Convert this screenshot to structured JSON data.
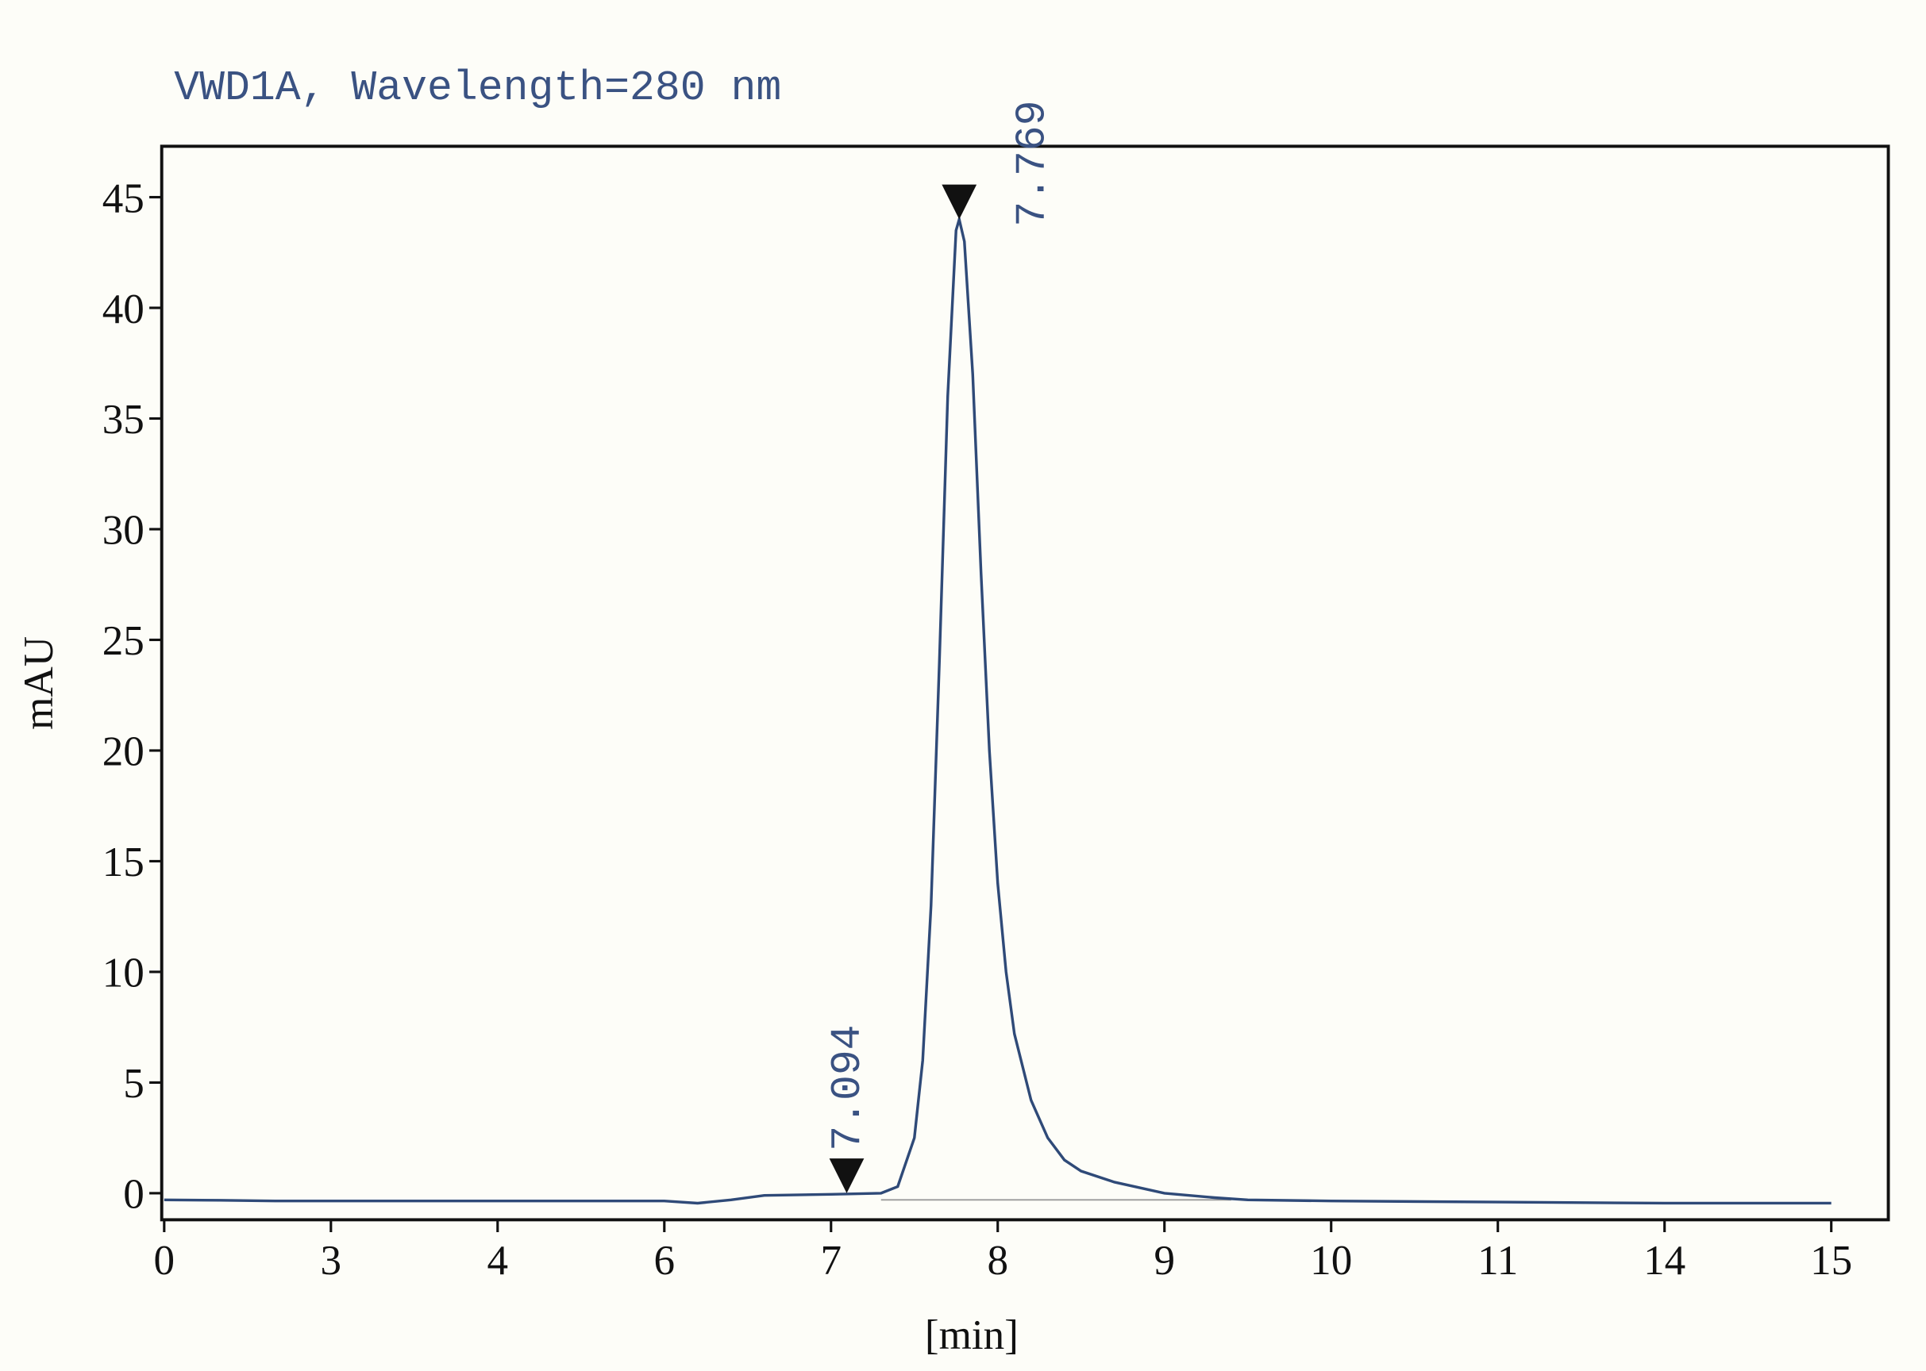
{
  "chart_data": {
    "type": "line",
    "title": "VWD1A, Wavelength=280 nm",
    "xlabel": "[min]",
    "ylabel": "mAU",
    "xlim": [
      0,
      15
    ],
    "xticks": [
      0,
      3,
      4,
      6,
      7,
      8,
      9,
      10,
      11,
      14,
      15
    ],
    "ylim": [
      -1.2,
      47.3
    ],
    "yticks": [
      0,
      5,
      10,
      15,
      20,
      25,
      30,
      35,
      40,
      45
    ],
    "grid": false,
    "series": [
      {
        "name": "VWD1A",
        "color": "#2f4a78",
        "x": [
          0,
          1,
          2,
          3,
          4,
          5,
          6,
          6.2,
          6.4,
          6.6,
          7.0,
          7.3,
          7.4,
          7.5,
          7.55,
          7.6,
          7.65,
          7.7,
          7.75,
          7.769,
          7.8,
          7.85,
          7.9,
          7.95,
          8.0,
          8.05,
          8.1,
          8.2,
          8.3,
          8.4,
          8.5,
          8.7,
          9.0,
          9.3,
          9.5,
          10,
          11,
          14,
          15
        ],
        "values": [
          -0.3,
          -0.32,
          -0.35,
          -0.35,
          -0.35,
          -0.35,
          -0.35,
          -0.45,
          -0.3,
          -0.1,
          -0.05,
          0,
          0.3,
          2.5,
          6,
          13,
          24,
          36,
          43.5,
          44,
          43,
          37,
          28,
          20,
          14,
          10,
          7.2,
          4.2,
          2.5,
          1.5,
          1.0,
          0.5,
          0,
          -0.2,
          -0.3,
          -0.35,
          -0.4,
          -0.45,
          -0.45
        ]
      },
      {
        "name": "baseline",
        "color": "#9a9a9a",
        "x": [
          7.3,
          9.4
        ],
        "values": [
          -0.3,
          -0.3
        ]
      }
    ],
    "peaks": {
      "x": [
        7.094,
        7.769
      ],
      "y": [
        0,
        44
      ],
      "color": "#111111"
    }
  }
}
